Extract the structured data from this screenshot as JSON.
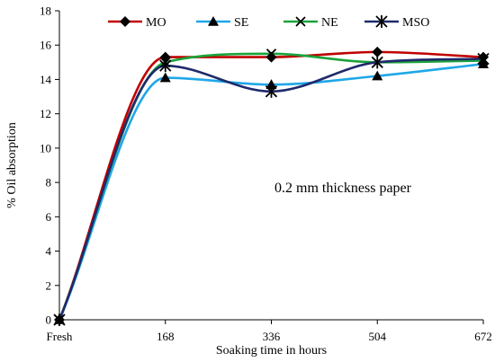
{
  "chart_data": {
    "type": "line",
    "title": "",
    "xlabel": "Soaking time in hours",
    "ylabel": "% Oil absorption",
    "categories": [
      "Fresh",
      "168",
      "336",
      "504",
      "672"
    ],
    "ylim": [
      0,
      18
    ],
    "yticks": [
      0,
      2,
      4,
      6,
      8,
      10,
      12,
      14,
      16,
      18
    ],
    "grid": false,
    "legend_position": "top-right",
    "annotation": "0.2 mm thickness paper",
    "series": [
      {
        "name": "MO",
        "color": "#c00000",
        "marker": "diamond",
        "values": [
          0,
          15.3,
          15.3,
          15.6,
          15.3
        ]
      },
      {
        "name": "SE",
        "color": "#1fa7e8",
        "marker": "triangle",
        "values": [
          0,
          14.1,
          13.7,
          14.2,
          14.9
        ]
      },
      {
        "name": "NE",
        "color": "#1aa33a",
        "marker": "x",
        "values": [
          0,
          15.0,
          15.5,
          15.0,
          15.1
        ]
      },
      {
        "name": "MSO",
        "color": "#1f2a6b",
        "marker": "star",
        "values": [
          0,
          14.8,
          13.3,
          15.0,
          15.2
        ]
      }
    ]
  }
}
